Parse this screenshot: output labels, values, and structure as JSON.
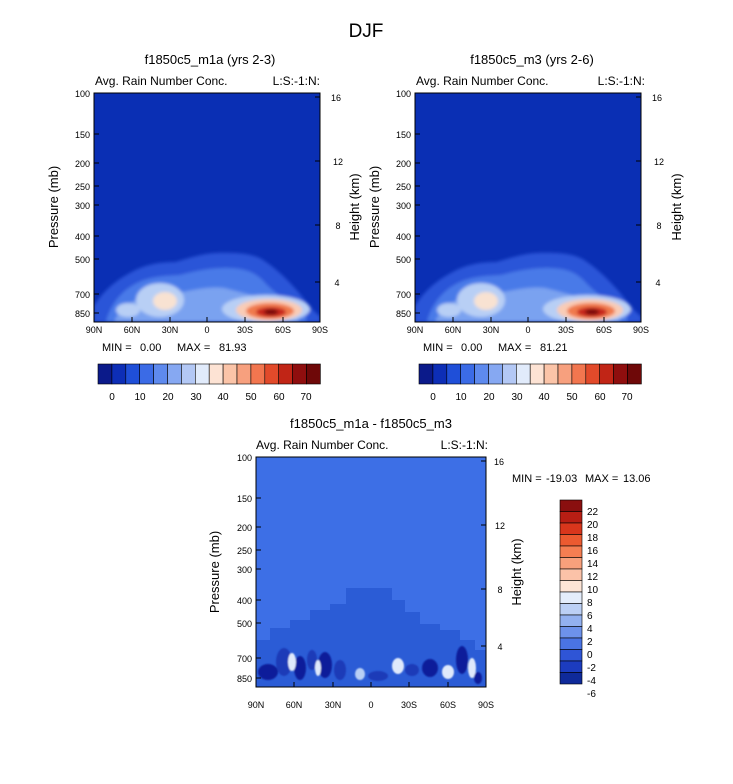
{
  "page": {
    "title": "DJF"
  },
  "chart_data": [
    {
      "type": "heatmap",
      "title": "f1850c5_m1a (yrs 2-3)",
      "left_label": "Avg. Rain Number Conc.",
      "right_label": "L:S:-1:N:",
      "xlabel": "",
      "ylabel": "Pressure (mb)",
      "y2label": "Height (km)",
      "x_ticks": [
        "90N",
        "60N",
        "30N",
        "0",
        "30S",
        "60S",
        "90S"
      ],
      "y_ticks": [
        "100",
        "150",
        "200",
        "250",
        "300",
        "400",
        "500",
        "700",
        "850"
      ],
      "y2_ticks": [
        "16",
        "12",
        "8",
        "4"
      ],
      "min_label": "MIN =",
      "min_value": "0.00",
      "max_label": "MAX =",
      "max_value": "81.93",
      "colorbar_labels": [
        "0",
        "10",
        "20",
        "30",
        "40",
        "50",
        "60",
        "70"
      ]
    },
    {
      "type": "heatmap",
      "title": "f1850c5_m3 (yrs 2-6)",
      "left_label": "Avg. Rain Number Conc.",
      "right_label": "L:S:-1:N:",
      "xlabel": "",
      "ylabel": "Pressure (mb)",
      "y2label": "Height (km)",
      "x_ticks": [
        "90N",
        "60N",
        "30N",
        "0",
        "30S",
        "60S",
        "90S"
      ],
      "y_ticks": [
        "100",
        "150",
        "200",
        "250",
        "300",
        "400",
        "500",
        "700",
        "850"
      ],
      "y2_ticks": [
        "16",
        "12",
        "8",
        "4"
      ],
      "min_label": "MIN =",
      "min_value": "0.00",
      "max_label": "MAX =",
      "max_value": "81.21",
      "colorbar_labels": [
        "0",
        "10",
        "20",
        "30",
        "40",
        "50",
        "60",
        "70"
      ]
    },
    {
      "type": "heatmap",
      "title": "f1850c5_m1a - f1850c5_m3",
      "left_label": "Avg. Rain Number Conc.",
      "right_label": "L:S:-1:N:",
      "xlabel": "",
      "ylabel": "Pressure (mb)",
      "y2label": "Height (km)",
      "x_ticks": [
        "90N",
        "60N",
        "30N",
        "0",
        "30S",
        "60S",
        "90S"
      ],
      "y_ticks": [
        "100",
        "150",
        "200",
        "250",
        "300",
        "400",
        "500",
        "700",
        "850"
      ],
      "y2_ticks": [
        "16",
        "12",
        "8",
        "4"
      ],
      "min_label": "MIN =",
      "min_value": "-19.03",
      "max_label": "MAX =",
      "max_value": "13.06",
      "colorbar_labels": [
        "22",
        "20",
        "18",
        "16",
        "14",
        "12",
        "10",
        "8",
        "6",
        "4",
        "2",
        "0",
        "-2",
        "-4",
        "-6"
      ]
    }
  ]
}
